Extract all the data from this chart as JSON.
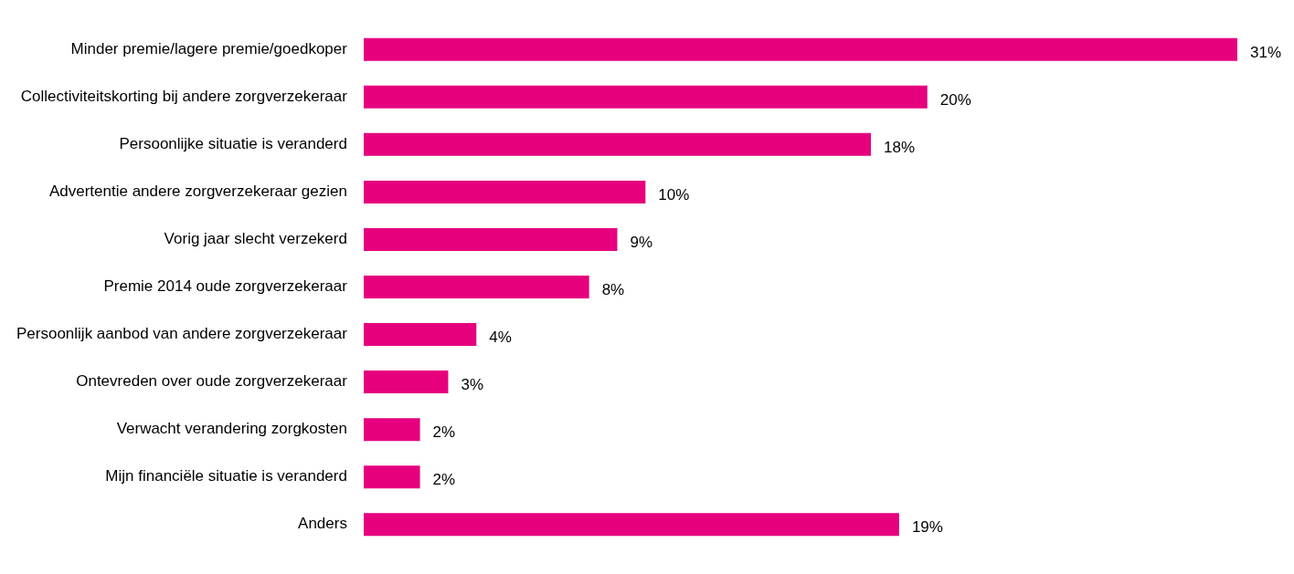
{
  "chart_data": {
    "type": "bar",
    "orientation": "horizontal",
    "categories": [
      "Minder premie/lagere premie/goedkoper",
      "Collectiviteitskorting bij andere zorgverzekeraar",
      "Persoonlijke situatie is veranderd",
      "Advertentie andere zorgverzekeraar gezien",
      "Vorig jaar slecht verzekerd",
      "Premie 2014 oude zorgverzekeraar",
      "Persoonlijk aanbod van andere zorgverzekeraar",
      "Ontevreden over oude zorgverzekeraar",
      "Verwacht verandering zorgkosten",
      "Mijn financiële situatie is veranderd",
      "Anders"
    ],
    "values": [
      31,
      20,
      18,
      10,
      9,
      8,
      4,
      3,
      2,
      2,
      19
    ],
    "value_labels": [
      "31%",
      "20%",
      "18%",
      "10%",
      "9%",
      "8%",
      "4%",
      "3%",
      "2%",
      "2%",
      "19%"
    ],
    "color": "#e6007e",
    "grid": false,
    "legend": false,
    "tick_labels": "y"
  }
}
